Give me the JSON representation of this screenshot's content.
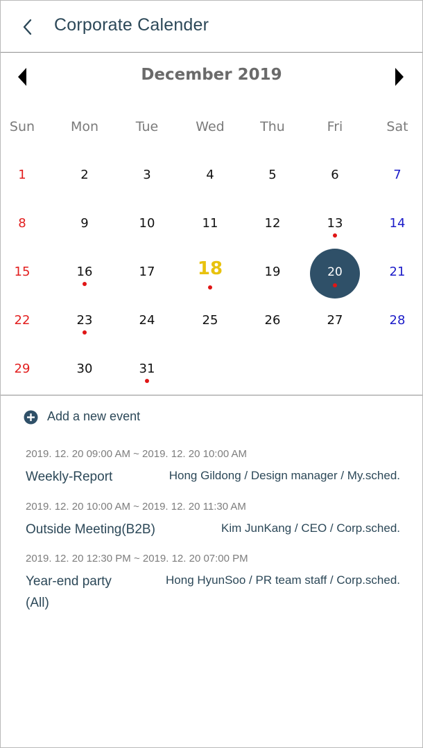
{
  "header": {
    "title": "Corporate Calender"
  },
  "calendar": {
    "month_title": "December 2019",
    "weekdays": [
      "Sun",
      "Mon",
      "Tue",
      "Wed",
      "Thu",
      "Fri",
      "Sat"
    ],
    "days": [
      {
        "label": "1",
        "col": 0,
        "row": 0,
        "dot": false
      },
      {
        "label": "2",
        "col": 1,
        "row": 0,
        "dot": false
      },
      {
        "label": "3",
        "col": 2,
        "row": 0,
        "dot": false
      },
      {
        "label": "4",
        "col": 3,
        "row": 0,
        "dot": false
      },
      {
        "label": "5",
        "col": 4,
        "row": 0,
        "dot": false
      },
      {
        "label": "6",
        "col": 5,
        "row": 0,
        "dot": false
      },
      {
        "label": "7",
        "col": 6,
        "row": 0,
        "dot": false
      },
      {
        "label": "8",
        "col": 0,
        "row": 1,
        "dot": false
      },
      {
        "label": "9",
        "col": 1,
        "row": 1,
        "dot": false
      },
      {
        "label": "10",
        "col": 2,
        "row": 1,
        "dot": false
      },
      {
        "label": "11",
        "col": 3,
        "row": 1,
        "dot": false
      },
      {
        "label": "12",
        "col": 4,
        "row": 1,
        "dot": false
      },
      {
        "label": "13",
        "col": 5,
        "row": 1,
        "dot": true
      },
      {
        "label": "14",
        "col": 6,
        "row": 1,
        "dot": false
      },
      {
        "label": "15",
        "col": 0,
        "row": 2,
        "dot": false
      },
      {
        "label": "16",
        "col": 1,
        "row": 2,
        "dot": true
      },
      {
        "label": "17",
        "col": 2,
        "row": 2,
        "dot": false
      },
      {
        "label": "18",
        "col": 3,
        "row": 2,
        "dot": true,
        "today": true
      },
      {
        "label": "19",
        "col": 4,
        "row": 2,
        "dot": false
      },
      {
        "label": "20",
        "col": 5,
        "row": 2,
        "dot": true,
        "selected": true
      },
      {
        "label": "21",
        "col": 6,
        "row": 2,
        "dot": false
      },
      {
        "label": "22",
        "col": 0,
        "row": 3,
        "dot": false
      },
      {
        "label": "23",
        "col": 1,
        "row": 3,
        "dot": true
      },
      {
        "label": "24",
        "col": 2,
        "row": 3,
        "dot": false
      },
      {
        "label": "25",
        "col": 3,
        "row": 3,
        "dot": false
      },
      {
        "label": "26",
        "col": 4,
        "row": 3,
        "dot": false
      },
      {
        "label": "27",
        "col": 5,
        "row": 3,
        "dot": false
      },
      {
        "label": "28",
        "col": 6,
        "row": 3,
        "dot": false
      },
      {
        "label": "29",
        "col": 0,
        "row": 4,
        "dot": false
      },
      {
        "label": "30",
        "col": 1,
        "row": 4,
        "dot": false
      },
      {
        "label": "31",
        "col": 2,
        "row": 4,
        "dot": true
      }
    ]
  },
  "add_event": {
    "label": "Add a new event",
    "icon": "plus-circle-icon"
  },
  "events": [
    {
      "time": "2019. 12. 20  09:00 AM ~ 2019. 12. 20 10:00 AM",
      "title": "Weekly-Report",
      "owner": "Hong Gildong / Design manager / My.sched."
    },
    {
      "time": "2019. 12. 20  10:00 AM ~ 2019. 12. 20 11:30 AM",
      "title": "Outside Meeting(B2B)",
      "owner": "Kim JunKang / CEO / Corp.sched."
    },
    {
      "time": "2019. 12. 20  12:30 PM ~ 2019. 12. 20 07:00 PM",
      "title": "Year-end party",
      "title_line2": "(All)",
      "owner": "Hong HyunSoo / PR team staff /  Corp.sched."
    }
  ],
  "colors": {
    "accent": "#2f5068",
    "today": "#e8c20e",
    "sunday": "#e21e1e",
    "saturday": "#1b1bc8",
    "event_dot": "#e01515"
  }
}
